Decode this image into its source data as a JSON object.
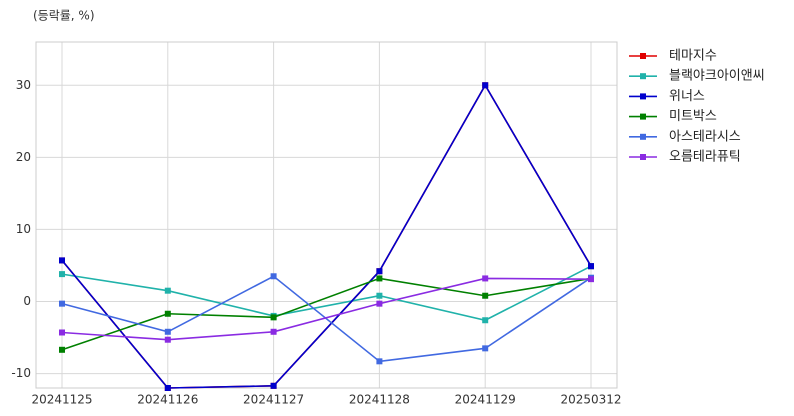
{
  "chart_data": {
    "type": "line",
    "unit_label": "(등락률, %)",
    "categories": [
      "20241125",
      "20241126",
      "20241127",
      "20241128",
      "20241129",
      "20250312"
    ],
    "series": [
      {
        "name": "테마지수",
        "color": "#e00000",
        "values": [
          5.7,
          -12,
          -11.7,
          4.2,
          30,
          4.9
        ]
      },
      {
        "name": "블랙야크아이앤씨",
        "color": "#20b2aa",
        "values": [
          3.8,
          1.5,
          -2.0,
          0.8,
          -2.6,
          4.9
        ]
      },
      {
        "name": "위너스",
        "color": "#0000cd",
        "values": [
          5.7,
          -12,
          -11.7,
          4.2,
          30,
          4.9
        ]
      },
      {
        "name": "미트박스",
        "color": "#008000",
        "values": [
          -6.7,
          -1.7,
          -2.2,
          3.2,
          0.8,
          3.2
        ]
      },
      {
        "name": "아스테라시스",
        "color": "#4169e1",
        "values": [
          -0.3,
          -4.2,
          3.5,
          -8.3,
          -6.5,
          3.3
        ]
      },
      {
        "name": "오름테라퓨틱",
        "color": "#8a2be2",
        "values": [
          -4.3,
          -5.3,
          -4.2,
          -0.3,
          3.2,
          3.1
        ]
      }
    ],
    "ylim": [
      -12,
      36
    ],
    "yticks": [
      -10,
      0,
      10,
      20,
      30
    ],
    "grid": true,
    "legend": "right"
  }
}
